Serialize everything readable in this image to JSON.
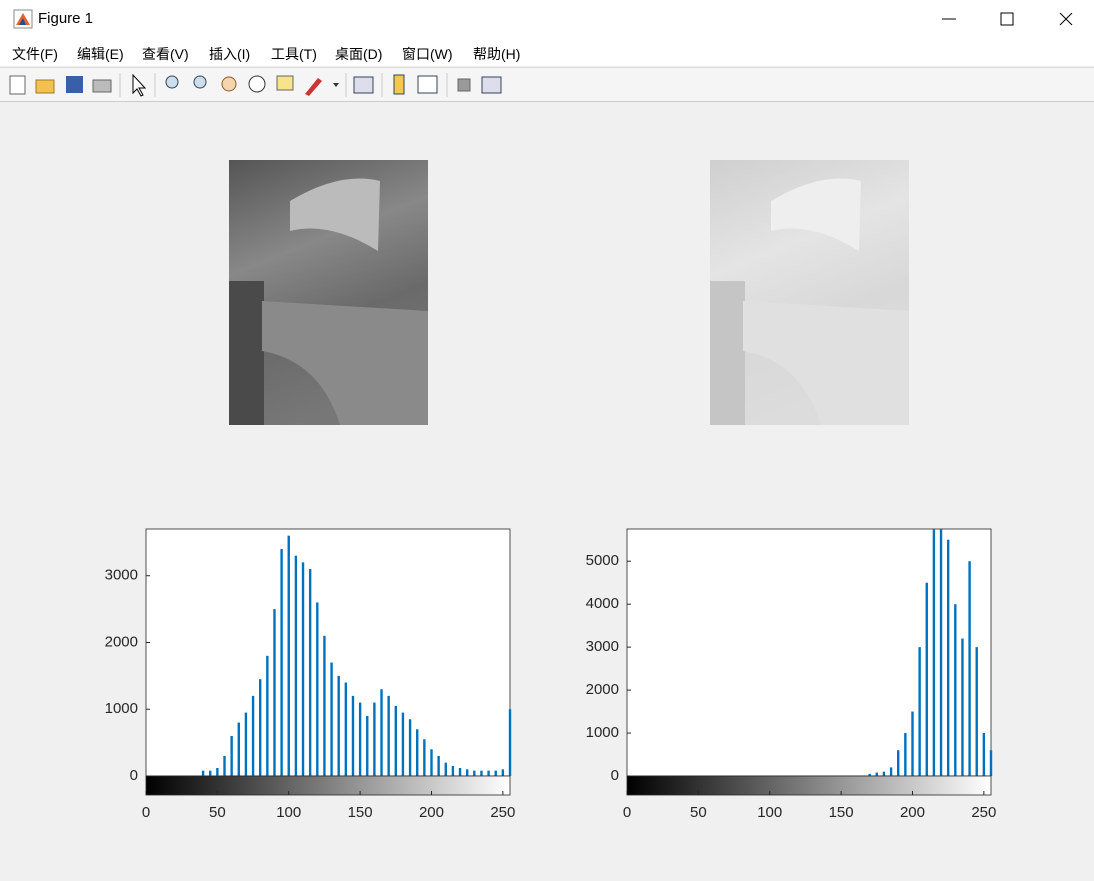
{
  "window": {
    "title": "Figure 1"
  },
  "menu": [
    "文件(F)",
    "编辑(E)",
    "查看(V)",
    "插入(I)",
    "工具(T)",
    "桌面(D)",
    "窗口(W)",
    "帮助(H)"
  ],
  "chart_data": [
    {
      "type": "bar",
      "color": "#0072bd",
      "x": [
        0,
        5,
        10,
        15,
        20,
        25,
        30,
        35,
        40,
        45,
        50,
        55,
        60,
        65,
        70,
        75,
        80,
        85,
        90,
        95,
        100,
        105,
        110,
        115,
        120,
        125,
        130,
        135,
        140,
        145,
        150,
        155,
        160,
        165,
        170,
        175,
        180,
        185,
        190,
        195,
        200,
        205,
        210,
        215,
        220,
        225,
        230,
        235,
        240,
        245,
        250,
        255
      ],
      "values": [
        0,
        0,
        0,
        0,
        0,
        0,
        0,
        0,
        80,
        80,
        120,
        300,
        600,
        800,
        950,
        1200,
        1450,
        1800,
        2500,
        3400,
        3600,
        3300,
        3200,
        3100,
        2600,
        2100,
        1700,
        1500,
        1400,
        1200,
        1100,
        900,
        1100,
        1300,
        1200,
        1050,
        950,
        850,
        700,
        550,
        400,
        300,
        200,
        150,
        120,
        100,
        80,
        80,
        80,
        80,
        100,
        1000
      ],
      "xlim": [
        0,
        255
      ],
      "xticks": [
        0,
        50,
        100,
        150,
        200,
        250
      ],
      "ylim": [
        0,
        3700
      ],
      "yticks": [
        0,
        1000,
        2000,
        3000
      ]
    },
    {
      "type": "bar",
      "color": "#0072bd",
      "x": [
        0,
        5,
        10,
        15,
        20,
        25,
        30,
        35,
        40,
        45,
        50,
        55,
        60,
        65,
        70,
        75,
        80,
        85,
        90,
        95,
        100,
        105,
        110,
        115,
        120,
        125,
        130,
        135,
        140,
        145,
        150,
        155,
        160,
        165,
        170,
        175,
        180,
        185,
        190,
        195,
        200,
        205,
        210,
        215,
        220,
        225,
        230,
        235,
        240,
        245,
        250,
        255
      ],
      "values": [
        0,
        0,
        0,
        0,
        0,
        0,
        0,
        0,
        0,
        0,
        0,
        0,
        0,
        0,
        0,
        0,
        0,
        0,
        0,
        0,
        0,
        0,
        0,
        0,
        0,
        0,
        0,
        0,
        0,
        0,
        0,
        0,
        0,
        0,
        50,
        80,
        100,
        200,
        600,
        1000,
        1500,
        3000,
        4500,
        5750,
        5750,
        5500,
        4000,
        3200,
        5000,
        3000,
        1000,
        600
      ],
      "xlim": [
        0,
        255
      ],
      "xticks": [
        0,
        50,
        100,
        150,
        200,
        250
      ],
      "ylim": [
        0,
        5750
      ],
      "yticks": [
        0,
        1000,
        2000,
        3000,
        4000,
        5000
      ]
    }
  ]
}
